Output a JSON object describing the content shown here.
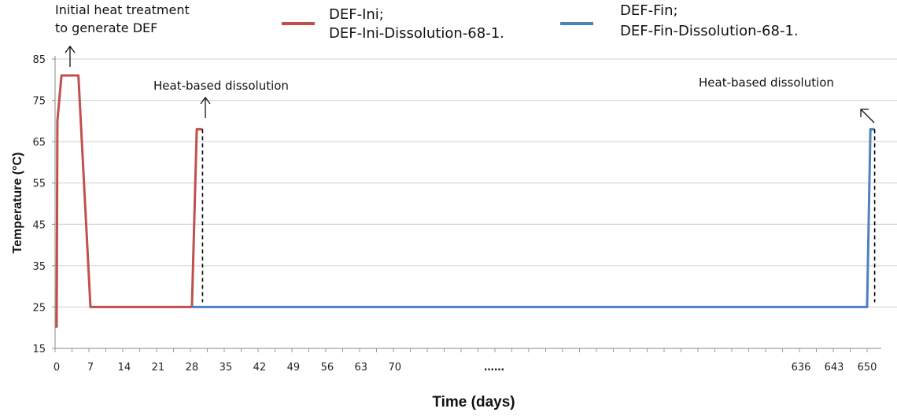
{
  "chart_data": {
    "type": "line",
    "xlabel": "Time (days)",
    "ylabel": "Temperature (°C)",
    "ylim": [
      15,
      85
    ],
    "y_ticks": [
      "85",
      "75",
      "65",
      "55",
      "45",
      "35",
      "25",
      "15"
    ],
    "x_ticks_left": [
      "0",
      "7",
      "14",
      "21",
      "28",
      "35",
      "42",
      "49",
      "56",
      "63",
      "70"
    ],
    "axis_break_label": "……",
    "x_ticks_right": [
      "636",
      "643",
      "650"
    ],
    "grid": "horizontal",
    "legend_position": "top",
    "legend": [
      {
        "line1": "DEF-Ini;",
        "line2": "DEF-Ini-Dissolution-68-1.",
        "color": "#c0504d"
      },
      {
        "line1": "DEF-Fin;",
        "line2": "DEF-Fin-Dissolution-68-1.",
        "color": "#4f81bd"
      }
    ],
    "annotations": {
      "initial_line1": "Initial heat treatment",
      "initial_line2": "to generate DEF",
      "dissolution_1": "Heat-based dissolution",
      "dissolution_2": "Heat-based dissolution"
    },
    "series": [
      {
        "color": "#c0504d",
        "points": [
          {
            "x": 0,
            "y": 20
          },
          {
            "x": 0.15,
            "y": 70
          },
          {
            "x": 1,
            "y": 81
          },
          {
            "x": 4.5,
            "y": 81
          },
          {
            "x": 7,
            "y": 25
          },
          {
            "x": 28,
            "y": 25
          },
          {
            "x": 29,
            "y": 68
          },
          {
            "x": 30.2,
            "y": 68
          }
        ]
      },
      {
        "color": "#4f81bd",
        "points_left": [
          {
            "x": 28,
            "y": 25
          },
          {
            "x": 75,
            "y": 25
          }
        ],
        "points_right": [
          {
            "x": 650,
            "y": 25
          },
          {
            "x": 650.7,
            "y": 68
          },
          {
            "x": 651.6,
            "y": 68
          }
        ]
      }
    ],
    "dissolution_end_days": [
      30.2,
      651.6
    ]
  }
}
